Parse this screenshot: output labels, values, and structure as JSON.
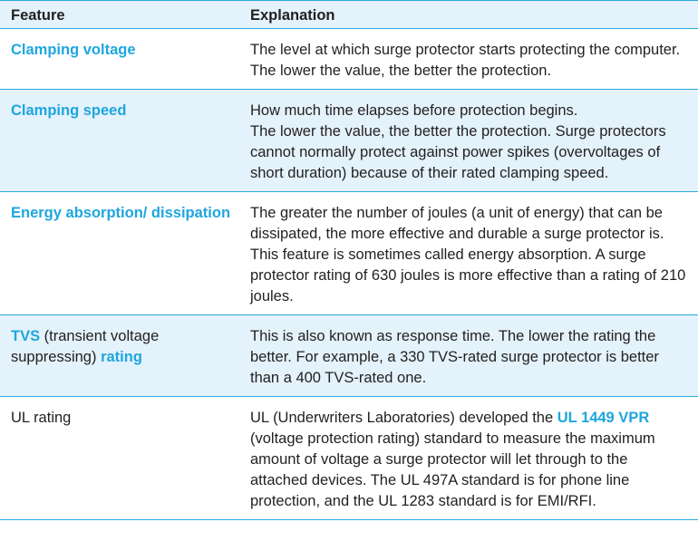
{
  "header": {
    "feature": "Feature",
    "explanation": "Explanation"
  },
  "rows": [
    {
      "feature": "Clamping voltage",
      "explanation": "The level at which surge protector starts protecting the computer. The lower the value, the better the protection."
    },
    {
      "feature": "Clamping speed",
      "explanation_line1": "How much time elapses before protection begins.",
      "explanation_line2": "The lower the value, the better the protection. Surge protectors cannot normally protect against power spikes (overvoltages of short duration) because of their rated clamping speed."
    },
    {
      "feature": "Energy absorption/ dissipation",
      "explanation": "The greater the number of joules (a unit of energy) that can be dissipated, the more effective and durable a surge protector is. This feature is sometimes called energy absorption. A surge protector rating of 630 joules is more effective than a rating of 210 joules."
    },
    {
      "feature_a": "TVS",
      "feature_b": " (transient voltage suppressing) ",
      "feature_c": "rating",
      "explanation": "This is also known as response time. The lower the rating the better. For example, a 330 TVS-rated surge protector is better than a 400 TVS-rated one."
    },
    {
      "feature": "UL rating",
      "explanation_a": "UL (Underwriters Laboratories) developed the ",
      "explanation_b": "UL 1449 VPR",
      "explanation_c": " (voltage protection rating) standard to measure the maximum amount of voltage a surge protector will let through to the attached devices. The UL 497A standard is for phone line protection, and the UL 1283 standard is for EMI/RFI."
    }
  ],
  "colors": {
    "accent": "#1ea6de",
    "row_tint": "#e3f2fb",
    "text": "#231f20"
  }
}
